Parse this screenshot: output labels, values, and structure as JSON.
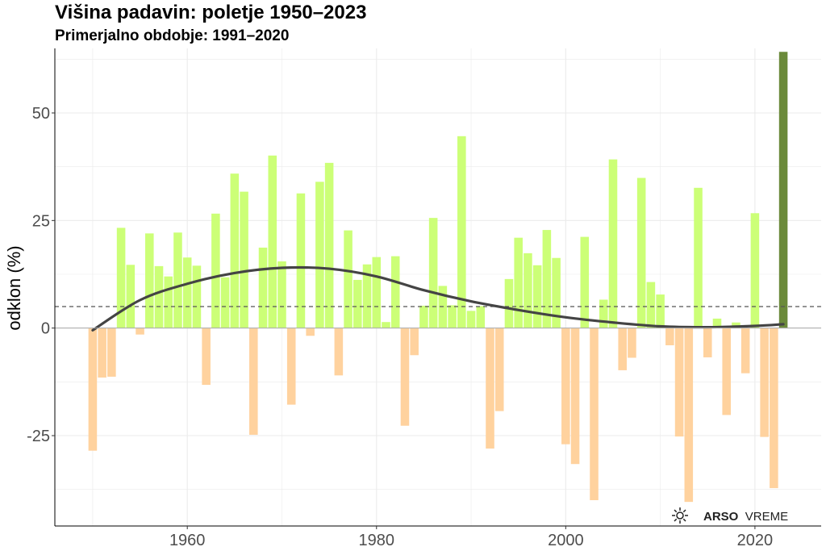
{
  "chart_data": {
    "type": "bar",
    "title": "Višina padavin: poletje 1950–2023",
    "subtitle": "Primerjalno obdobje: 1991–2020",
    "xlabel": "",
    "ylabel": "odklon (%)",
    "xlim": [
      1946,
      2027
    ],
    "ylim": [
      -46,
      65
    ],
    "x_ticks": [
      1960,
      1980,
      2000,
      2020
    ],
    "y_ticks": [
      -25,
      0,
      25,
      50
    ],
    "reference_line": 5,
    "colors": {
      "positive": "#ccff77",
      "negative": "#ffd29e",
      "highlight": "#6b8a3a",
      "trend": "#444444",
      "grid": "#ebebeb",
      "axis": "#000000"
    },
    "highlight_year": 2023,
    "years": [
      1950,
      1951,
      1952,
      1953,
      1954,
      1955,
      1956,
      1957,
      1958,
      1959,
      1960,
      1961,
      1962,
      1963,
      1964,
      1965,
      1966,
      1967,
      1968,
      1969,
      1970,
      1971,
      1972,
      1973,
      1974,
      1975,
      1976,
      1977,
      1978,
      1979,
      1980,
      1981,
      1982,
      1983,
      1984,
      1985,
      1986,
      1987,
      1988,
      1989,
      1990,
      1991,
      1992,
      1993,
      1994,
      1995,
      1996,
      1997,
      1998,
      1999,
      2000,
      2001,
      2002,
      2003,
      2004,
      2005,
      2006,
      2007,
      2008,
      2009,
      2010,
      2011,
      2012,
      2013,
      2014,
      2015,
      2016,
      2017,
      2018,
      2019,
      2020,
      2021,
      2022,
      2023
    ],
    "values": [
      -28.5,
      -11.5,
      -11.3,
      23.3,
      14.7,
      -1.5,
      22.0,
      14.4,
      12.0,
      22.2,
      16.4,
      14.5,
      -13.2,
      26.6,
      11.8,
      35.9,
      31.7,
      -24.8,
      18.7,
      40.1,
      15.5,
      -17.8,
      31.3,
      -1.8,
      34.0,
      38.4,
      -11.0,
      22.7,
      11.2,
      14.8,
      16.5,
      1.4,
      16.7,
      -22.7,
      -6.3,
      5.2,
      25.6,
      9.8,
      5.3,
      44.6,
      4.0,
      5.1,
      -28.0,
      -19.3,
      11.4,
      21.0,
      17.4,
      14.6,
      22.8,
      16.3,
      -27.0,
      -31.6,
      21.2,
      -40.0,
      6.6,
      39.2,
      -9.8,
      -6.9,
      34.9,
      10.7,
      7.8,
      -4.0,
      -25.2,
      -40.4,
      32.6,
      -6.8,
      2.2,
      -20.2,
      1.3,
      -10.5,
      26.7,
      -25.3,
      -37.2,
      64.2
    ],
    "trend": {
      "name": "trend",
      "x": [
        1950,
        1955,
        1960,
        1965,
        1970,
        1975,
        1980,
        1985,
        1990,
        1995,
        2000,
        2005,
        2010,
        2015,
        2020,
        2023
      ],
      "y": [
        -0.5,
        6.5,
        10.3,
        12.8,
        14.0,
        13.8,
        12.0,
        8.8,
        6.2,
        4.2,
        2.5,
        1.3,
        0.4,
        0.2,
        0.5,
        0.9
      ]
    }
  },
  "logo": {
    "icon": "sun-icon",
    "brand": "ARSO",
    "product": "VREME"
  }
}
